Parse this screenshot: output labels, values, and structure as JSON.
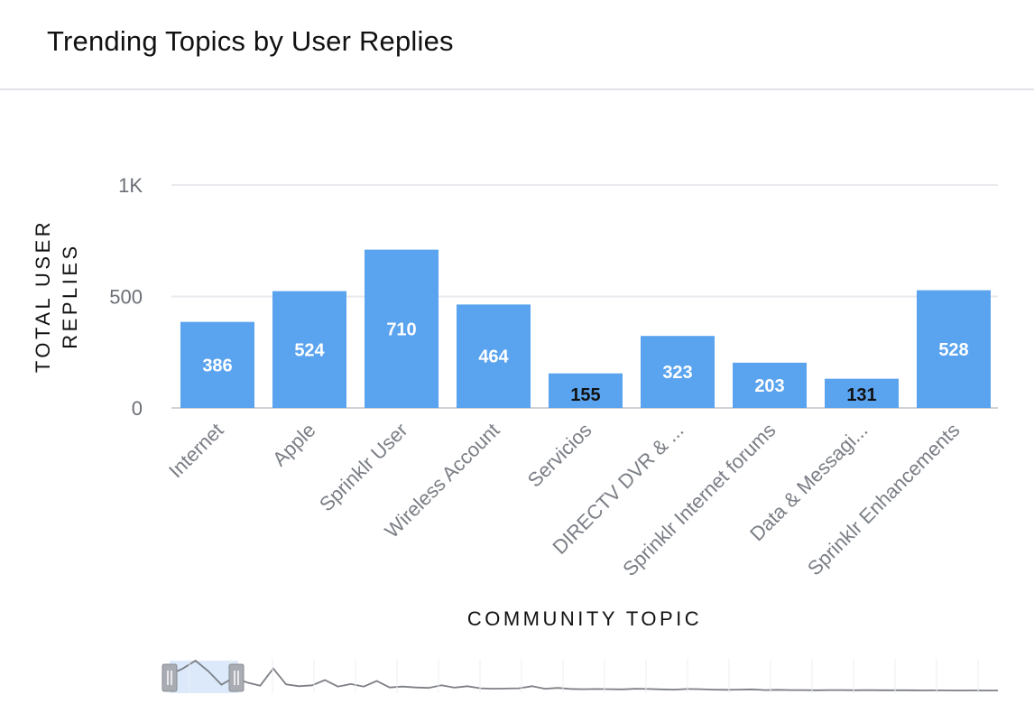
{
  "page": {
    "title": "Trending Topics by User Replies"
  },
  "chart_data": {
    "type": "bar",
    "categories": [
      "Internet",
      "Apple",
      "Sprinklr User",
      "Wireless Account",
      "Servicios",
      "DIRECTV DVR & ...",
      "Sprinklr Internet forums",
      "Data & Messagi...",
      "Sprinklr Enhancements"
    ],
    "values": [
      386,
      524,
      710,
      464,
      155,
      323,
      203,
      131,
      528
    ],
    "xlabel": "COMMUNITY TOPIC",
    "ylabel_lines": [
      "TOTAL USER",
      "REPLIES"
    ],
    "ylim": [
      0,
      1000
    ],
    "yticks": [
      {
        "value": 0,
        "label": "0"
      },
      {
        "value": 500,
        "label": "500"
      },
      {
        "value": 1000,
        "label": "1K"
      }
    ],
    "grid": true,
    "bar_color": "#5aa3ee",
    "label_color_inside": "#ffffff",
    "label_color_dark": "#111111",
    "navigator": {
      "line_color": "#7c7f85",
      "selection_color": "#dbe9fb",
      "series": [
        386,
        524,
        710,
        464,
        155,
        323,
        203,
        131,
        528,
        160,
        120,
        140,
        260,
        110,
        170,
        110,
        240,
        90,
        110,
        90,
        80,
        140,
        85,
        120,
        70,
        60,
        65,
        70,
        120,
        60,
        80,
        55,
        50,
        55,
        50,
        45,
        60,
        55,
        45,
        40,
        55,
        50,
        40,
        35,
        40,
        45,
        30,
        35,
        30,
        30,
        25,
        30,
        30,
        25,
        30,
        25,
        25,
        25,
        20,
        22,
        20,
        18,
        20,
        18,
        18
      ]
    }
  }
}
